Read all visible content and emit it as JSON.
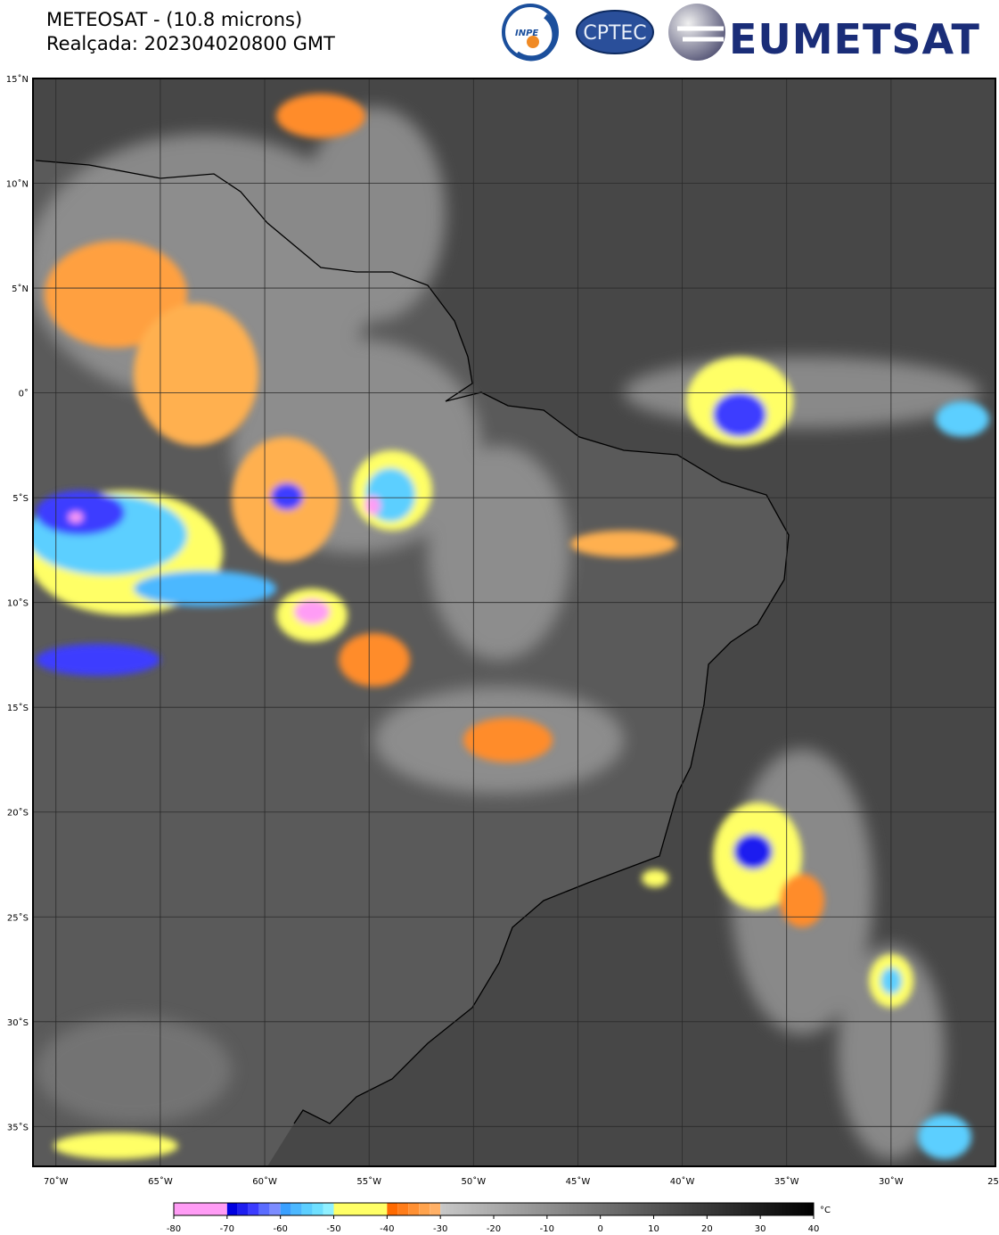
{
  "header": {
    "title": "METEOSAT - (10.8 microns)",
    "subtitle": "Realçada: 202304020800 GMT",
    "logos": [
      "INPE",
      "CPTEC",
      "EUMETSAT"
    ]
  },
  "map": {
    "lonlim": [
      -71.1,
      -25
    ],
    "latlim": [
      -36.9,
      15
    ],
    "lat_ticks": [
      {
        "value": 15,
        "label": "15˚N"
      },
      {
        "value": 10,
        "label": "10˚N"
      },
      {
        "value": 5,
        "label": "5˚N"
      },
      {
        "value": 0,
        "label": "0˚"
      },
      {
        "value": -5,
        "label": "5˚S"
      },
      {
        "value": -10,
        "label": "10˚S"
      },
      {
        "value": -15,
        "label": "15˚S"
      },
      {
        "value": -20,
        "label": "20˚S"
      },
      {
        "value": -25,
        "label": "25˚S"
      },
      {
        "value": -30,
        "label": "30˚S"
      },
      {
        "value": -35,
        "label": "35˚S"
      }
    ],
    "lon_ticks": [
      {
        "value": -70,
        "label": "70˚W"
      },
      {
        "value": -65,
        "label": "65˚W"
      },
      {
        "value": -60,
        "label": "60˚W"
      },
      {
        "value": -55,
        "label": "55˚W"
      },
      {
        "value": -50,
        "label": "50˚W"
      },
      {
        "value": -45,
        "label": "45˚W"
      },
      {
        "value": -40,
        "label": "40˚W"
      },
      {
        "value": -35,
        "label": "35˚W"
      },
      {
        "value": -30,
        "label": "30˚W"
      },
      {
        "value": -25,
        "label": "25˚"
      }
    ]
  },
  "colorbar": {
    "range": [
      -80,
      40
    ],
    "ticks": [
      -80,
      -70,
      -60,
      -50,
      -40,
      -30,
      -20,
      -10,
      0,
      10,
      20,
      30,
      40
    ],
    "unit": "°C",
    "segments": [
      {
        "from": -80,
        "to": -70,
        "color": "#ff9cf5"
      },
      {
        "from": -70,
        "to": -68,
        "color": "#0000e0"
      },
      {
        "from": -68,
        "to": -66,
        "color": "#1e1ef0"
      },
      {
        "from": -66,
        "to": -64,
        "color": "#3c3cff"
      },
      {
        "from": -64,
        "to": -62,
        "color": "#5a6cff"
      },
      {
        "from": -62,
        "to": -60,
        "color": "#7c8cff"
      },
      {
        "from": -60,
        "to": -58,
        "color": "#3aa0ff"
      },
      {
        "from": -58,
        "to": -56,
        "color": "#4cb8ff"
      },
      {
        "from": -56,
        "to": -54,
        "color": "#5ccfff"
      },
      {
        "from": -54,
        "to": -52,
        "color": "#6fe0ff"
      },
      {
        "from": -52,
        "to": -50,
        "color": "#8ff0ff"
      },
      {
        "from": -50,
        "to": -40,
        "color": "#ffff66"
      },
      {
        "from": -40,
        "to": -38,
        "color": "#ff6a00"
      },
      {
        "from": -38,
        "to": -36,
        "color": "#ff7d1a"
      },
      {
        "from": -36,
        "to": -34,
        "color": "#ff9033"
      },
      {
        "from": -34,
        "to": -32,
        "color": "#ffa34d"
      },
      {
        "from": -32,
        "to": -30,
        "color": "#ffb066"
      },
      {
        "from": -30,
        "to": 40,
        "color": "#c8c8c8",
        "color_to": "#000000"
      }
    ]
  }
}
